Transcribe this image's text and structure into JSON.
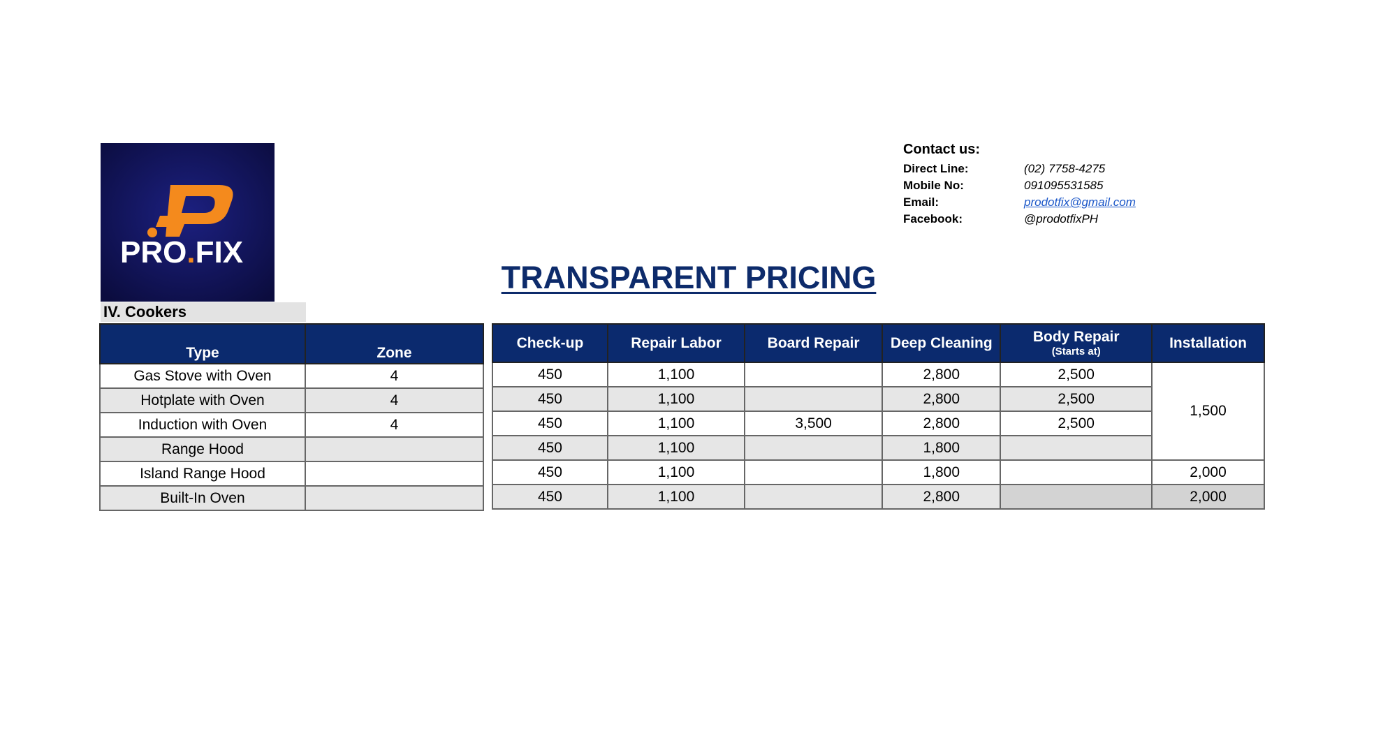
{
  "logo": {
    "left": "PRO",
    "dot": ".",
    "right": "FIX"
  },
  "contact": {
    "heading": "Contact us:",
    "items": [
      {
        "label": "Direct Line:",
        "value": "(02) 7758-4275"
      },
      {
        "label": "Mobile No:",
        "value": "091095531585"
      },
      {
        "label": "Email:",
        "value": "prodotfix@gmail.com"
      },
      {
        "label": "Facebook:",
        "value": "@prodotfixPH"
      }
    ]
  },
  "title": "TRANSPARENT PRICING",
  "section": "IV. Cookers",
  "table": {
    "columns": [
      "Type",
      "Zone",
      "Check-up",
      "Repair Labor",
      "Board Repair",
      "Deep Cleaning",
      "Body Repair",
      "Installation"
    ],
    "column_note": "(Starts at)",
    "rows": [
      [
        "Gas Stove with Oven",
        "4",
        "450",
        "1,100",
        null,
        "2,800",
        "2,500",
        "1,500"
      ],
      [
        "Hotplate with Oven",
        "4",
        "450",
        "1,100",
        null,
        "2,800",
        "2,500",
        null
      ],
      [
        "Induction with Oven",
        "4",
        "450",
        "1,100",
        "3,500",
        "2,800",
        "2,500",
        null
      ],
      [
        "Range Hood",
        null,
        "450",
        "1,100",
        null,
        "1,800",
        null,
        null
      ],
      [
        "Island Range Hood",
        null,
        "450",
        "1,100",
        null,
        "1,800",
        null,
        "2,000"
      ],
      [
        "Built-In Oven",
        null,
        "450",
        "1,100",
        null,
        "2,800",
        null,
        "2,000"
      ]
    ]
  }
}
